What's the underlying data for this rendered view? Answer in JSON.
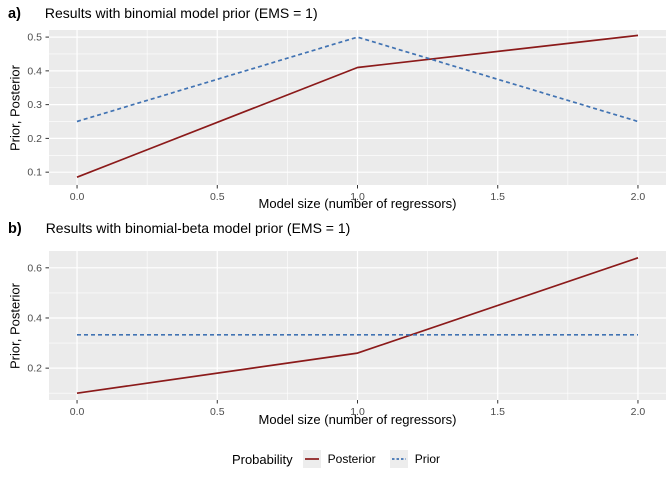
{
  "colors": {
    "posterior": "#8B1A1A",
    "prior": "#4173B3",
    "panel_bg": "#EBEBEB",
    "grid": "#FFFFFF",
    "axis_text": "#4D4D4D",
    "tick_mark": "#333333",
    "legend_key_bg": "#EDEDED",
    "title_text": "#000000"
  },
  "legend": {
    "title": "Probability",
    "position": "bottom",
    "items": [
      {
        "label": "Posterior",
        "series": "Posterior",
        "style": "solid"
      },
      {
        "label": "Prior",
        "series": "Prior",
        "style": "dashed"
      }
    ]
  },
  "chart_data": [
    {
      "id": "a",
      "tag": "a)",
      "title": "Results with binomial model prior (EMS = 1)",
      "type": "line",
      "xlabel": "Model size (number of regressors)",
      "ylabel": "Prior, Posterior",
      "x": [
        0,
        1,
        2
      ],
      "series": [
        {
          "name": "Posterior",
          "values": [
            0.085,
            0.41,
            0.505
          ],
          "color": "#8B1A1A",
          "dash": "solid"
        },
        {
          "name": "Prior",
          "values": [
            0.25,
            0.5,
            0.25
          ],
          "color": "#4173B3",
          "dash": "dashed"
        }
      ],
      "xlim": [
        -0.1,
        2.1
      ],
      "ylim": [
        0.062,
        0.521
      ],
      "xticks": [
        0.0,
        0.5,
        1.0,
        1.5,
        2.0
      ],
      "yticks": [
        0.1,
        0.2,
        0.3,
        0.4,
        0.5
      ],
      "xminor": [
        0.25,
        0.75,
        1.25,
        1.75
      ],
      "yminor": [
        0.15,
        0.25,
        0.35,
        0.45
      ],
      "grid": true
    },
    {
      "id": "b",
      "tag": "b)",
      "title": "Results with binomial-beta model prior (EMS = 1)",
      "type": "line",
      "xlabel": "Model size (number of regressors)",
      "ylabel": "Prior, Posterior",
      "x": [
        0,
        1,
        2
      ],
      "series": [
        {
          "name": "Posterior",
          "values": [
            0.1,
            0.26,
            0.64
          ],
          "color": "#8B1A1A",
          "dash": "solid"
        },
        {
          "name": "Prior",
          "values": [
            0.333,
            0.333,
            0.333
          ],
          "color": "#4173B3",
          "dash": "dashed"
        }
      ],
      "xlim": [
        -0.1,
        2.1
      ],
      "ylim": [
        0.073,
        0.667
      ],
      "xticks": [
        0.0,
        0.5,
        1.0,
        1.5,
        2.0
      ],
      "yticks": [
        0.2,
        0.4,
        0.6
      ],
      "xminor": [
        0.25,
        0.75,
        1.25,
        1.75
      ],
      "yminor": [
        0.1,
        0.3,
        0.5
      ],
      "grid": true
    }
  ]
}
